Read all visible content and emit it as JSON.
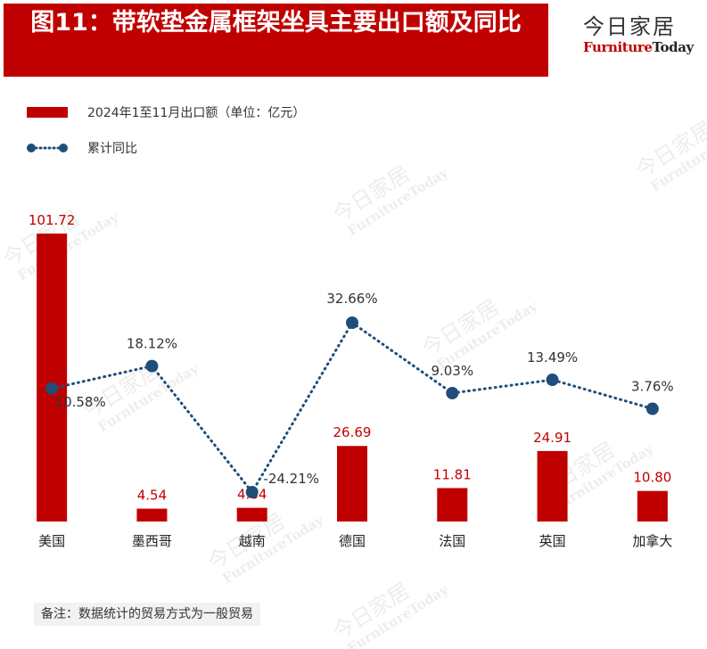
{
  "title": "图11：带软垫金属框架坐具主要出口额及同比",
  "logo": {
    "cn": "今日家居",
    "en_part1": "Furniture",
    "en_part2": "Today"
  },
  "legend": {
    "bar": "2024年1至11月出口额（单位：亿元）",
    "line": "累计同比"
  },
  "note": "备注：数据统计的贸易方式为一般贸易",
  "colors": {
    "title_bg": "#c00000",
    "bar": "#c00000",
    "bar_label": "#c00000",
    "line": "#1f4e79"
  },
  "chart_data": {
    "type": "bar",
    "categories": [
      "美国",
      "墨西哥",
      "越南",
      "德国",
      "法国",
      "英国",
      "加拿大"
    ],
    "series": [
      {
        "name": "2024年1至11月出口额（单位：亿元）",
        "type": "bar",
        "values": [
          101.72,
          4.54,
          4.84,
          26.69,
          11.81,
          24.91,
          10.8
        ],
        "labels": [
          "101.72",
          "4.54",
          "4.84",
          "26.69",
          "11.81",
          "24.91",
          "10.80"
        ]
      },
      {
        "name": "累计同比",
        "type": "line",
        "values": [
          10.58,
          18.12,
          -24.21,
          32.66,
          9.03,
          13.49,
          3.76
        ],
        "labels": [
          "10.58%",
          "18.12%",
          "-24.21%",
          "32.66%",
          "9.03%",
          "13.49%",
          "3.76%"
        ]
      }
    ],
    "xlabel": "",
    "ylabel": "",
    "bar_ylim": [
      0,
      101.72
    ],
    "line_ylim": [
      -24.21,
      32.66
    ],
    "grid": false,
    "legend_position": "top-left"
  }
}
